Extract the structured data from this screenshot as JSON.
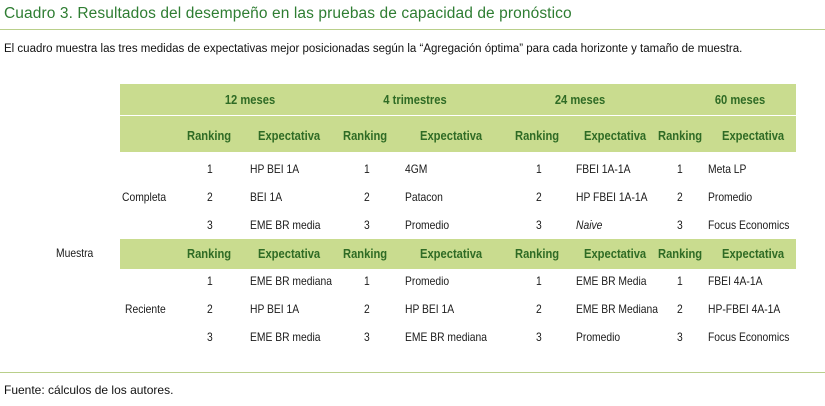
{
  "title": "Cuadro 3. Resultados del desempeño en las pruebas de capacidad de pronóstico",
  "caption": "El cuadro muestra las tres medidas de expectativas mejor posicionadas según la “Agregación óptima” para cada horizonte y tamaño de muestra.",
  "footer": "Fuente: cálculos de los autores.",
  "table": {
    "row_group_label": "Muestra",
    "periods": [
      "12 meses",
      "4 trimestres",
      "24 meses",
      "60 meses"
    ],
    "col_headers": {
      "ranking": "Ranking",
      "expectativa": "Expectativa"
    },
    "groups": [
      {
        "name": "Completa",
        "rows": [
          {
            "r1": "1",
            "e1": "HP BEI 1A",
            "r2": "1",
            "e2": "4GM",
            "r3": "1",
            "e3": "FBEI 1A-1A",
            "r4": "1",
            "e4": "Meta LP"
          },
          {
            "r1": "2",
            "e1": "BEI 1A",
            "r2": "2",
            "e2": "Patacon",
            "r3": "2",
            "e3": "HP FBEI 1A-1A",
            "r4": "2",
            "e4": "Promedio"
          },
          {
            "r1": "3",
            "e1": "EME BR media",
            "r2": "3",
            "e2": "Promedio",
            "r3": "3",
            "e3": "Naive",
            "r4": "3",
            "e4": "Focus Economics"
          }
        ]
      },
      {
        "name": "Reciente",
        "rows": [
          {
            "r1": "1",
            "e1": "EME BR mediana",
            "r2": "1",
            "e2": "Promedio",
            "r3": "1",
            "e3": "EME BR Media",
            "r4": "1",
            "e4": "FBEI 4A-1A"
          },
          {
            "r1": "2",
            "e1": "HP BEI 1A",
            "r2": "2",
            "e2": "HP BEI 1A",
            "r3": "2",
            "e3": "EME BR Mediana",
            "r4": "2",
            "e4": "HP-FBEI 4A-1A"
          },
          {
            "r1": "3",
            "e1": "EME BR media",
            "r2": "3",
            "e2": "EME BR mediana",
            "r3": "3",
            "e3": "Promedio",
            "r4": "3",
            "e4": "Focus Economics"
          }
        ]
      }
    ]
  }
}
